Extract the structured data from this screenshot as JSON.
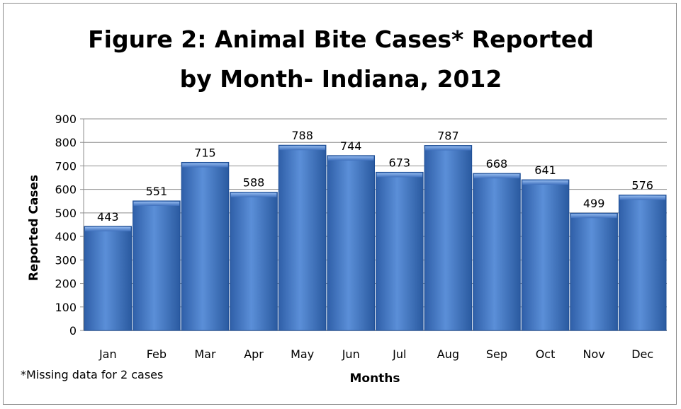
{
  "chart_data": {
    "type": "bar",
    "title_lines": [
      "Figure 2: Animal Bite Cases* Reported",
      "by Month- Indiana, 2012"
    ],
    "xlabel": "Months",
    "ylabel": "Reported Cases",
    "categories": [
      "Jan",
      "Feb",
      "Mar",
      "Apr",
      "May",
      "Jun",
      "Jul",
      "Aug",
      "Sep",
      "Oct",
      "Nov",
      "Dec"
    ],
    "values": [
      443,
      551,
      715,
      588,
      788,
      744,
      673,
      787,
      668,
      641,
      499,
      576
    ],
    "ylim": [
      0,
      900
    ],
    "yticks": [
      0,
      100,
      200,
      300,
      400,
      500,
      600,
      700,
      800,
      900
    ],
    "grid": true,
    "legend": "none",
    "bar_color": "#4a7ecb",
    "footnote": "*Missing data for 2 cases"
  }
}
